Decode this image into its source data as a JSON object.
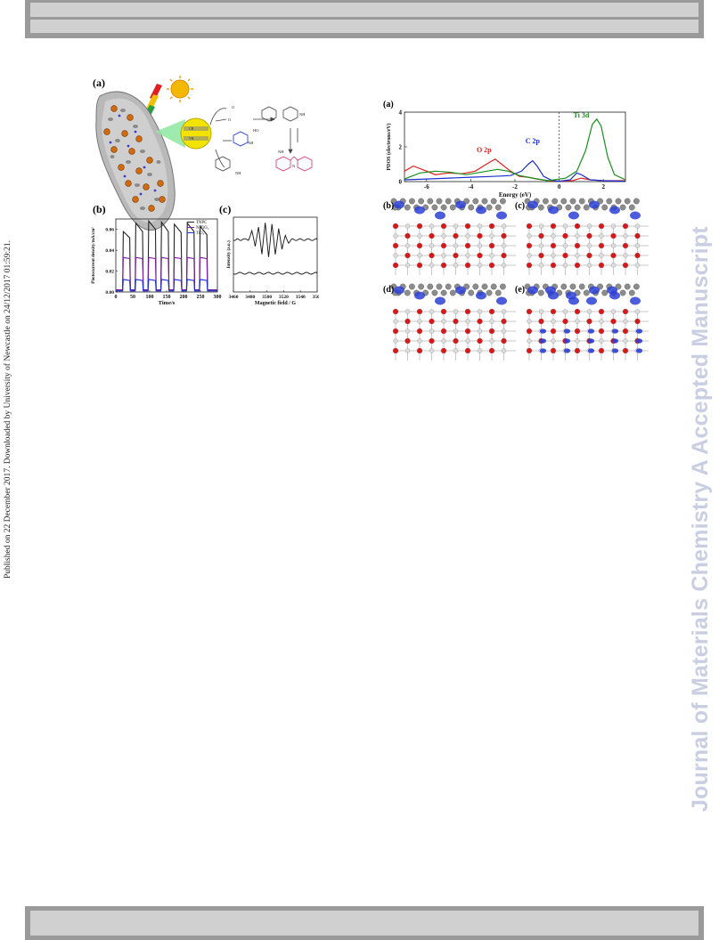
{
  "header": {},
  "side_note": "Published on 22 December 2017. Downloaded by University of Newcastle on 24/12/2017 01:59:21.",
  "watermark": "Journal of Materials Chemistry A Accepted Manuscript",
  "figure_left": {
    "panel_a": {
      "label": "(a)",
      "species": [
        "O",
        "O",
        "2",
        "NH",
        "2",
        "HO",
        "2",
        "H",
        "O",
        "2",
        "2",
        "NH",
        "NH",
        "2",
        "NH",
        "N"
      ]
    },
    "panel_b": {
      "label": "(b)"
    },
    "panel_c": {
      "label": "(c)"
    }
  },
  "figure_right": {
    "panel_a": {
      "label": "(a)"
    },
    "panel_b": {
      "label": "(b)"
    },
    "panel_c": {
      "label": "(c)"
    },
    "panel_d": {
      "label": "(d)"
    },
    "panel_e": {
      "label": "(e)"
    }
  },
  "chart_data": [
    {
      "type": "line",
      "panel": "left-(b)",
      "xlabel": "Time/s",
      "ylabel": "Photocurrent density/mA/cm²",
      "xlim": [
        0,
        300
      ],
      "ylim": [
        0,
        0.07
      ],
      "xticks": [
        "0",
        "50",
        "100",
        "150",
        "200",
        "250",
        "300"
      ],
      "yticks": [
        "0.00",
        "0.02",
        "0.04",
        "0.06"
      ],
      "legend": [
        "TNPC",
        "N-TiO₂",
        "TiO₂"
      ],
      "legend_position": "top-right",
      "colors": {
        "TNPC": "#222222",
        "N-TiO₂": "#7a1fa0",
        "TiO₂": "#1a2fd0"
      },
      "on_intervals": [
        [
          20,
          42
        ],
        [
          57,
          80
        ],
        [
          95,
          118
        ],
        [
          133,
          156
        ],
        [
          171,
          194
        ],
        [
          209,
          232
        ],
        [
          247,
          270
        ]
      ],
      "series": [
        {
          "name": "TNPC",
          "off": 0.002,
          "on_peak": [
            0.058,
            0.066,
            0.068,
            0.067,
            0.065,
            0.066,
            0.063
          ],
          "on_end": [
            0.052,
            0.058,
            0.06,
            0.058,
            0.057,
            0.058,
            0.055
          ]
        },
        {
          "name": "N-TiO₂",
          "off": 0.002,
          "on_peak": [
            0.033,
            0.033,
            0.033,
            0.033,
            0.033,
            0.033,
            0.033
          ],
          "on_end": [
            0.032,
            0.032,
            0.032,
            0.032,
            0.032,
            0.032,
            0.032
          ]
        },
        {
          "name": "TiO₂",
          "off": 0.001,
          "on_peak": [
            0.012,
            0.012,
            0.012,
            0.012,
            0.012,
            0.012,
            0.012
          ],
          "on_end": [
            0.011,
            0.011,
            0.011,
            0.011,
            0.011,
            0.011,
            0.011
          ]
        }
      ]
    },
    {
      "type": "line",
      "panel": "left-(c)",
      "xlabel": "Magnetic field / G",
      "ylabel": "Intensity (a.u.)",
      "xlim": [
        3460,
        3560
      ],
      "xticks": [
        "3460",
        "3480",
        "3500",
        "3520",
        "3540",
        "3560"
      ],
      "series": [
        {
          "name": "upper",
          "baseline": 0.7,
          "points": [
            [
              3460,
              0.7
            ],
            [
              3470,
              0.7
            ],
            [
              3478,
              0.7
            ],
            [
              3482,
              0.82
            ],
            [
              3486,
              0.6
            ],
            [
              3490,
              0.88
            ],
            [
              3494,
              0.5
            ],
            [
              3498,
              0.92
            ],
            [
              3502,
              0.48
            ],
            [
              3506,
              0.9
            ],
            [
              3510,
              0.5
            ],
            [
              3514,
              0.86
            ],
            [
              3518,
              0.56
            ],
            [
              3522,
              0.76
            ],
            [
              3526,
              0.66
            ],
            [
              3530,
              0.7
            ],
            [
              3560,
              0.7
            ]
          ]
        },
        {
          "name": "lower",
          "baseline": 0.25,
          "points": [
            [
              3460,
              0.25
            ],
            [
              3560,
              0.25
            ]
          ]
        }
      ]
    },
    {
      "type": "line",
      "panel": "right-(a)",
      "xlabel": "Energy (eV)",
      "ylabel": "PDOS (electrons/eV)",
      "xlim": [
        -7,
        3
      ],
      "ylim": [
        0,
        4
      ],
      "xticks": [
        "-6",
        "-4",
        "-2",
        "0",
        "2"
      ],
      "yticks": [
        "0",
        "2",
        "4"
      ],
      "annotations": [
        "O 2p",
        "C 2p",
        "Ti 3d"
      ],
      "colors": {
        "O 2p": "#e02020",
        "C 2p": "#1a2fd0",
        "Ti 3d": "#18901a"
      },
      "fermi_level": 0,
      "series": [
        {
          "name": "O 2p",
          "points": [
            [
              -7,
              0.6
            ],
            [
              -6.6,
              0.9
            ],
            [
              -6.2,
              0.7
            ],
            [
              -5.6,
              0.4
            ],
            [
              -5,
              0.5
            ],
            [
              -4.4,
              0.45
            ],
            [
              -3.8,
              0.6
            ],
            [
              -3.3,
              1.0
            ],
            [
              -2.9,
              1.3
            ],
            [
              -2.6,
              1.0
            ],
            [
              -2.2,
              0.6
            ],
            [
              -1.8,
              0.3
            ],
            [
              -1.4,
              0.25
            ],
            [
              -1,
              0.15
            ],
            [
              -0.5,
              0.05
            ],
            [
              0,
              0.02
            ],
            [
              0.6,
              0.05
            ],
            [
              1.0,
              0.2
            ],
            [
              1.4,
              0.1
            ],
            [
              2,
              0.05
            ],
            [
              3,
              0.05
            ]
          ]
        },
        {
          "name": "C 2p",
          "points": [
            [
              -7,
              0.1
            ],
            [
              -6,
              0.15
            ],
            [
              -5,
              0.2
            ],
            [
              -4,
              0.25
            ],
            [
              -3,
              0.3
            ],
            [
              -2.2,
              0.35
            ],
            [
              -1.7,
              0.6
            ],
            [
              -1.4,
              1.0
            ],
            [
              -1.2,
              1.2
            ],
            [
              -1.0,
              0.9
            ],
            [
              -0.7,
              0.3
            ],
            [
              -0.3,
              0.05
            ],
            [
              0,
              0.02
            ],
            [
              0.5,
              0.1
            ],
            [
              0.8,
              0.5
            ],
            [
              1.0,
              0.4
            ],
            [
              1.4,
              0.1
            ],
            [
              2,
              0.05
            ],
            [
              3,
              0.02
            ]
          ]
        },
        {
          "name": "Ti 3d",
          "points": [
            [
              -7,
              0.15
            ],
            [
              -6.3,
              0.5
            ],
            [
              -5.6,
              0.6
            ],
            [
              -5,
              0.55
            ],
            [
              -4.2,
              0.4
            ],
            [
              -3.5,
              0.55
            ],
            [
              -2.8,
              0.7
            ],
            [
              -2.3,
              0.6
            ],
            [
              -1.8,
              0.35
            ],
            [
              -1.2,
              0.2
            ],
            [
              -0.5,
              0.05
            ],
            [
              0.3,
              0.2
            ],
            [
              0.8,
              0.6
            ],
            [
              1.2,
              1.8
            ],
            [
              1.5,
              3.3
            ],
            [
              1.7,
              3.6
            ],
            [
              1.9,
              3.2
            ],
            [
              2.2,
              1.4
            ],
            [
              2.5,
              0.4
            ],
            [
              3,
              0.1
            ]
          ]
        }
      ]
    }
  ]
}
